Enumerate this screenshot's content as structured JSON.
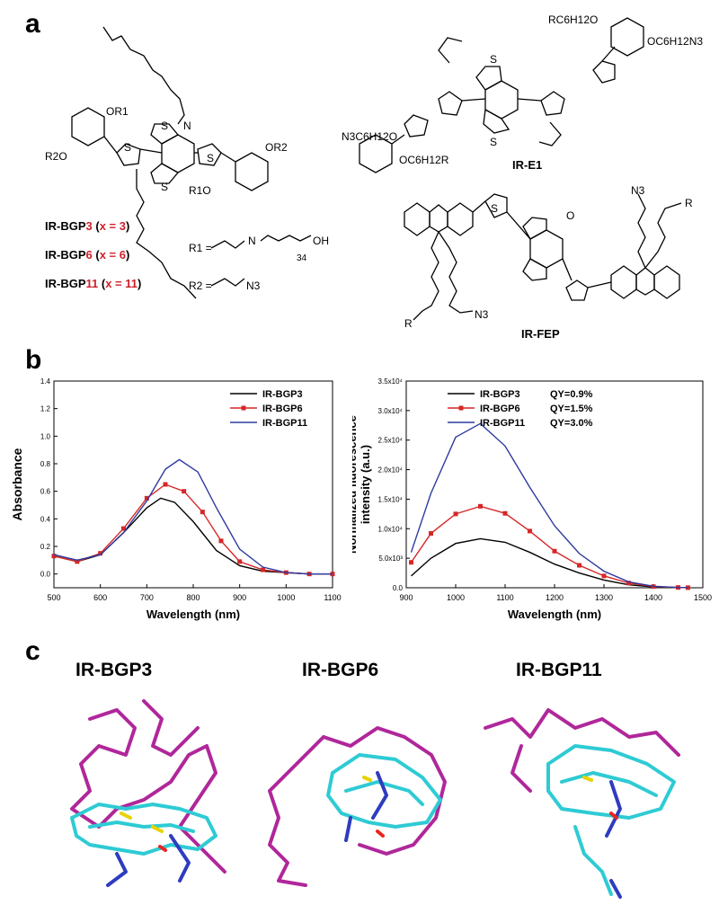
{
  "panels": {
    "a": "a",
    "b": "b",
    "c": "c"
  },
  "structures": {
    "bgp_labels": [
      {
        "prefix": "IR-BGP",
        "num": "3",
        "open": " (",
        "x": "x = 3",
        "close": ")"
      },
      {
        "prefix": "IR-BGP",
        "num": "6",
        "open": " (",
        "x": "x = 6",
        "close": ")"
      },
      {
        "prefix": "IR-BGP",
        "num": "11",
        "open": " (",
        "x": "x = 11",
        "close": ")"
      }
    ],
    "substituents": {
      "r1": "R1 = ",
      "r1_tail": "OH",
      "r1_n": "34",
      "r2": "R2 = ",
      "r2_tail": "N3"
    },
    "e1_label": "IR-E1",
    "fep_label": "IR-FEP",
    "atoms": {
      "or1": "OR1",
      "or2": "OR2",
      "r2o": "R2O",
      "r1o": "R1O",
      "s": "S",
      "n": "N",
      "o": "O",
      "rc6h12o": "RC6H12O",
      "oc6h12n3": "OC6H12N3",
      "n3c6h12o": "N3C6H12O",
      "oc6h12r": "OC6H12R",
      "n3": "N3",
      "r": "R"
    }
  },
  "chart_data": [
    {
      "type": "line",
      "xlabel": "Wavelength (nm)",
      "ylabel": "Absorbance",
      "xlim": [
        500,
        1100
      ],
      "ylim": [
        -0.1,
        1.4
      ],
      "xticks": [
        500,
        600,
        700,
        800,
        900,
        1000,
        1100
      ],
      "yticks": [
        0.0,
        0.2,
        0.4,
        0.6,
        0.8,
        1.0,
        1.2,
        1.4
      ],
      "ytick_labels": [
        "0.0",
        "0.2",
        "0.4",
        "0.6",
        "0.8",
        "1.0",
        "1.2",
        "1.4"
      ],
      "legend_position": "top-right",
      "series": [
        {
          "name": "IR-BGP3",
          "color": "#000000",
          "marker": "none",
          "x": [
            500,
            550,
            600,
            650,
            700,
            730,
            760,
            800,
            850,
            900,
            950,
            1000,
            1050,
            1100
          ],
          "y": [
            0.13,
            0.09,
            0.14,
            0.3,
            0.48,
            0.55,
            0.52,
            0.38,
            0.17,
            0.06,
            0.02,
            0.01,
            0.0,
            0.0
          ]
        },
        {
          "name": "IR-BGP6",
          "color": "#d62728",
          "marker": "square",
          "x": [
            500,
            550,
            600,
            650,
            700,
            740,
            780,
            820,
            860,
            900,
            950,
            1000,
            1050,
            1100
          ],
          "y": [
            0.13,
            0.09,
            0.15,
            0.33,
            0.55,
            0.65,
            0.6,
            0.45,
            0.24,
            0.09,
            0.03,
            0.01,
            0.0,
            0.0
          ]
        },
        {
          "name": "IR-BGP11",
          "color": "#2e3a9f",
          "marker": "none",
          "x": [
            500,
            550,
            600,
            650,
            700,
            740,
            770,
            810,
            850,
            900,
            950,
            1000,
            1050,
            1100
          ],
          "y": [
            0.14,
            0.1,
            0.14,
            0.3,
            0.53,
            0.76,
            0.83,
            0.74,
            0.48,
            0.18,
            0.05,
            0.01,
            0.0,
            0.0
          ]
        }
      ]
    },
    {
      "type": "line",
      "xlabel": "Wavelength (nm)",
      "ylabel": "Normalized fluorescence intensity (a.u.)",
      "xlim": [
        900,
        1500
      ],
      "ylim": [
        0,
        35000
      ],
      "xticks": [
        900,
        1000,
        1100,
        1200,
        1300,
        1400,
        1500
      ],
      "yticks": [
        0,
        5000,
        10000,
        15000,
        20000,
        25000,
        30000,
        35000
      ],
      "ytick_labels": [
        "0.0",
        "5.0x10³",
        "1.0x10⁴",
        "1.5x10⁴",
        "2.0x10⁴",
        "2.5x10⁴",
        "3.0x10⁴",
        "3.5x10⁴"
      ],
      "legend_position": "top-right",
      "series": [
        {
          "name": "IR-BGP3",
          "qy": "QY=0.9%",
          "color": "#000000",
          "marker": "none",
          "x": [
            910,
            950,
            1000,
            1050,
            1100,
            1150,
            1200,
            1250,
            1300,
            1350,
            1400,
            1450,
            1470
          ],
          "y": [
            2000,
            5000,
            7500,
            8300,
            7700,
            6000,
            4000,
            2500,
            1300,
            500,
            150,
            40,
            20
          ]
        },
        {
          "name": "IR-BGP6",
          "qy": "QY=1.5%",
          "color": "#d62728",
          "marker": "square",
          "x": [
            910,
            950,
            1000,
            1050,
            1100,
            1150,
            1200,
            1250,
            1300,
            1350,
            1400,
            1450,
            1470
          ],
          "y": [
            4300,
            9200,
            12500,
            13800,
            12600,
            9600,
            6200,
            3800,
            2000,
            800,
            200,
            50,
            20
          ]
        },
        {
          "name": "IR-BGP11",
          "qy": "QY=3.0%",
          "color": "#2e3a9f",
          "marker": "none",
          "x": [
            910,
            950,
            1000,
            1050,
            1100,
            1150,
            1200,
            1250,
            1300,
            1350,
            1400,
            1450,
            1470
          ],
          "y": [
            6000,
            16000,
            25500,
            27800,
            24000,
            17000,
            10500,
            5800,
            2800,
            1000,
            250,
            50,
            20
          ]
        }
      ]
    }
  ],
  "models": [
    {
      "title": "IR-BGP3"
    },
    {
      "title": "IR-BGP6"
    },
    {
      "title": "IR-BGP11"
    }
  ],
  "colors": {
    "backbone": "#2ecbd4",
    "peg": "#b0279a",
    "azide": "#2e3cc0",
    "sulfur": "#e8d200",
    "oxygen": "#e8261f"
  }
}
